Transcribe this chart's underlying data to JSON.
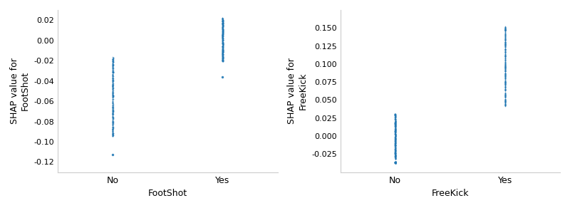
{
  "plot1": {
    "xlabel": "FootShot",
    "ylabel": "SHAP value for\nFootShot",
    "xtick_labels": [
      "No",
      "Yes"
    ],
    "xtick_positions": [
      0,
      1
    ],
    "no_main_cluster_min": -0.095,
    "no_main_cluster_max": -0.016,
    "no_main_cluster_n": 400,
    "no_outlier_value": -0.113,
    "yes_main_cluster_min": -0.021,
    "yes_main_cluster_max": 0.022,
    "yes_main_cluster_n": 400,
    "yes_outlier_value": -0.036,
    "ylim": [
      -0.13,
      0.03
    ],
    "yticks": [
      -0.12,
      -0.1,
      -0.08,
      -0.06,
      -0.04,
      -0.02,
      0.0,
      0.02
    ],
    "color": "#1f77b4",
    "dot_size": 1.5,
    "alpha": 0.6,
    "xlim": [
      -0.5,
      1.5
    ]
  },
  "plot2": {
    "xlabel": "FreeKick",
    "ylabel": "SHAP value for\nFreeKick",
    "xtick_labels": [
      "No",
      "Yes"
    ],
    "xtick_positions": [
      0,
      1
    ],
    "no_main_cluster_min": -0.032,
    "no_main_cluster_max": 0.031,
    "no_main_cluster_n": 400,
    "no_outlier_min": -0.038,
    "no_outlier_max": -0.034,
    "no_outlier_n": 5,
    "yes_main_cluster_min": 0.042,
    "yes_main_cluster_max": 0.152,
    "yes_main_cluster_n": 400,
    "ylim": [
      -0.05,
      0.175
    ],
    "yticks": [
      -0.025,
      0.0,
      0.025,
      0.05,
      0.075,
      0.1,
      0.125,
      0.15
    ],
    "color": "#1f77b4",
    "dot_size": 1.5,
    "alpha": 0.6,
    "xlim": [
      -0.5,
      1.5
    ]
  },
  "figsize": [
    8.0,
    2.92
  ],
  "dpi": 100
}
